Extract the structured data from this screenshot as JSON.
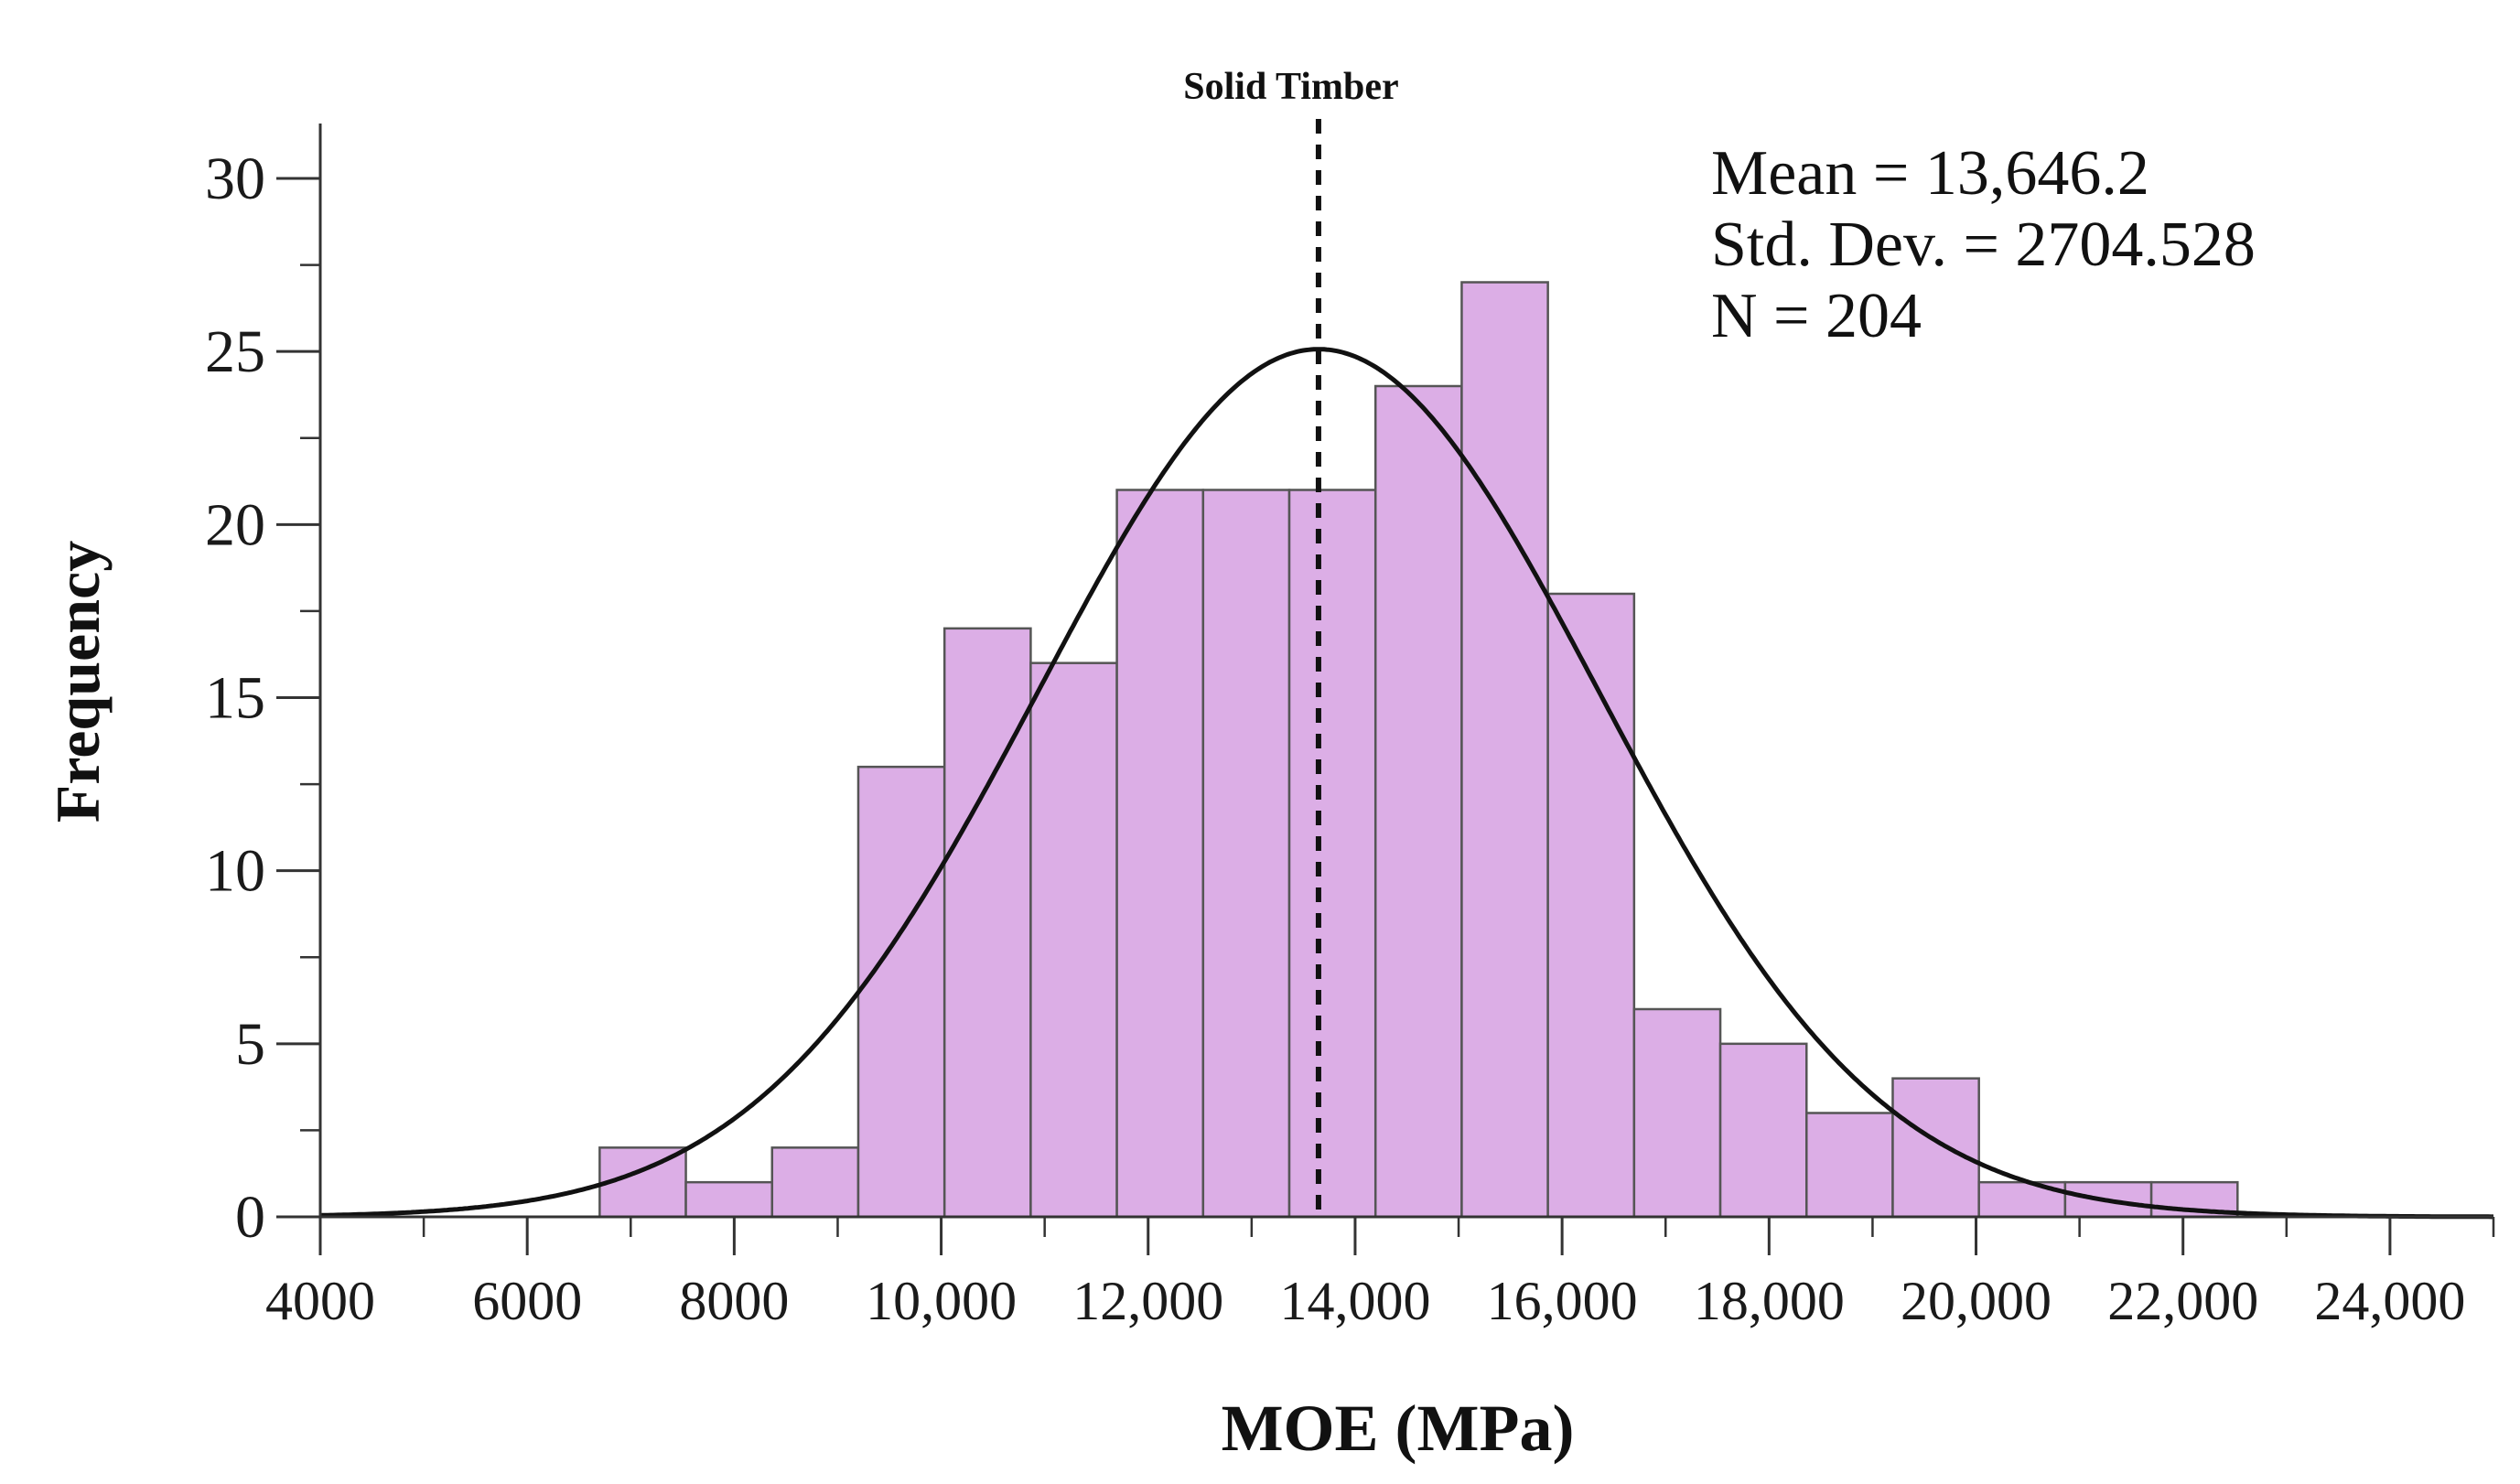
{
  "chart_data": {
    "type": "bar",
    "subtype": "histogram",
    "title": "",
    "xlabel": "MOE (MPa)",
    "ylabel": "Frequency",
    "xlim": [
      4000,
      25000
    ],
    "ylim": [
      0,
      30
    ],
    "x_ticks": [
      4000,
      6000,
      8000,
      10000,
      12000,
      14000,
      16000,
      18000,
      20000,
      22000,
      24000
    ],
    "x_tick_labels": [
      "4000",
      "6000",
      "8000",
      "10,000",
      "12,000",
      "14,000",
      "16,000",
      "18,000",
      "20,000",
      "22,000",
      "24,000"
    ],
    "y_ticks": [
      0,
      5,
      10,
      15,
      20,
      25,
      30
    ],
    "y_tick_labels": [
      "0",
      "5",
      "10",
      "15",
      "20",
      "25",
      "30"
    ],
    "bin_width": 833,
    "bins": [
      {
        "start": 6700,
        "value": 2
      },
      {
        "start": 7533,
        "value": 1
      },
      {
        "start": 8366,
        "value": 2
      },
      {
        "start": 9199,
        "value": 13
      },
      {
        "start": 10032,
        "value": 17
      },
      {
        "start": 10865,
        "value": 16
      },
      {
        "start": 11698,
        "value": 21
      },
      {
        "start": 12531,
        "value": 21
      },
      {
        "start": 13364,
        "value": 21
      },
      {
        "start": 14197,
        "value": 24
      },
      {
        "start": 15030,
        "value": 27
      },
      {
        "start": 15863,
        "value": 18
      },
      {
        "start": 16696,
        "value": 6
      },
      {
        "start": 17529,
        "value": 5
      },
      {
        "start": 18362,
        "value": 3
      },
      {
        "start": 19195,
        "value": 4
      },
      {
        "start": 20028,
        "value": 1
      },
      {
        "start": 20861,
        "value": 1
      },
      {
        "start": 21694,
        "value": 1
      }
    ],
    "normal_curve": {
      "mean": 13646.2,
      "std_dev": 2704.528,
      "n": 204
    },
    "reference_line": {
      "x": 13646.2,
      "label": "Solid Timber",
      "style": "dashed"
    },
    "stats_text": [
      "Mean = 13,646.2",
      "Std. Dev. = 2704.528",
      "N = 204"
    ],
    "colors": {
      "bar_fill": "#dcaee6",
      "bar_stroke": "#555555",
      "curve": "#111111",
      "axis": "#333333",
      "reference_line": "#111111"
    },
    "grid": false
  }
}
